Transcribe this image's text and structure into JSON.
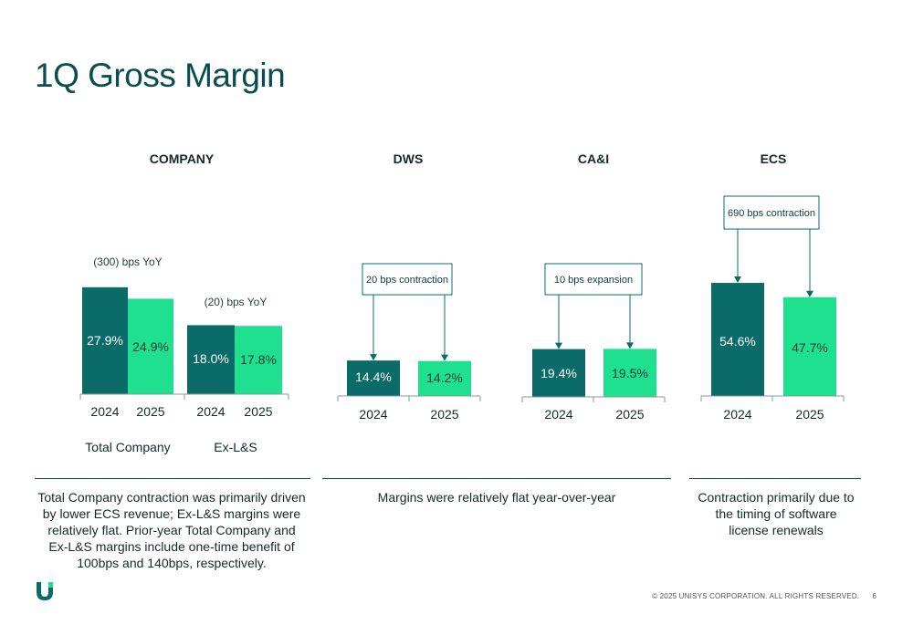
{
  "title": "1Q Gross Margin",
  "colors": {
    "dark": "#0b6b68",
    "light": "#1fe08e",
    "text": "#15292a",
    "axis": "#0a4d50"
  },
  "panels": [
    {
      "title": "COMPANY"
    },
    {
      "title": "DWS"
    },
    {
      "title": "CA&I"
    },
    {
      "title": "ECS"
    }
  ],
  "chart_data": [
    {
      "type": "bar",
      "panel": "COMPANY",
      "groups": [
        {
          "label": "Total Company",
          "callout": "(300) bps YoY",
          "categories": [
            "2024",
            "2025"
          ],
          "values": [
            27.9,
            24.9
          ],
          "labels": [
            "27.9%",
            "24.9%"
          ]
        },
        {
          "label": "Ex-L&S",
          "callout": "(20) bps YoY",
          "categories": [
            "2024",
            "2025"
          ],
          "values": [
            18.0,
            17.8
          ],
          "labels": [
            "18.0%",
            "17.8%"
          ]
        }
      ]
    },
    {
      "type": "bar",
      "panel": "DWS",
      "callout": "20 bps contraction",
      "categories": [
        "2024",
        "2025"
      ],
      "values": [
        14.4,
        14.2
      ],
      "labels": [
        "14.4%",
        "14.2%"
      ]
    },
    {
      "type": "bar",
      "panel": "CA&I",
      "callout": "10 bps expansion",
      "categories": [
        "2024",
        "2025"
      ],
      "values": [
        19.4,
        19.5
      ],
      "labels": [
        "19.4%",
        "19.5%"
      ]
    },
    {
      "type": "bar",
      "panel": "ECS",
      "callout": "690 bps contraction",
      "categories": [
        "2024",
        "2025"
      ],
      "values": [
        54.6,
        47.7
      ],
      "labels": [
        "54.6%",
        "47.7%"
      ]
    }
  ],
  "notes": [
    "Total Company contraction was primarily driven by lower ECS revenue; Ex-L&S margins were relatively flat. Prior-year Total Company and Ex-L&S margins include one-time benefit of 100bps and 140bps, respectively.",
    "Margins were relatively flat year-over-year",
    "Contraction primarily due to the timing of software license renewals"
  ],
  "footer": {
    "copyright": "© 2025 UNISYS CORPORATION. ALL RIGHTS RESERVED.",
    "page": "6"
  }
}
